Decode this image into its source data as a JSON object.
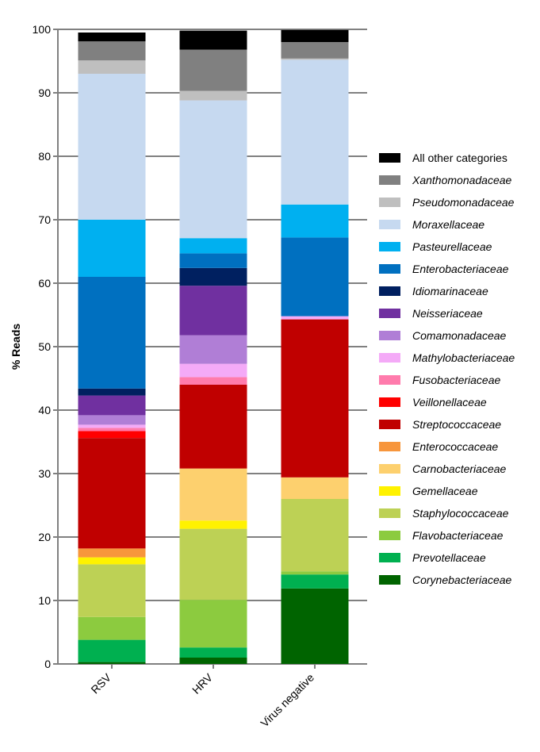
{
  "chart_data": {
    "type": "bar",
    "stacked": true,
    "categories": [
      "RSV",
      "HRV",
      "Virus negative"
    ],
    "ylabel": "% Reads",
    "xlabel": "",
    "ylim": [
      0,
      100
    ],
    "yticks": [
      0,
      10,
      20,
      30,
      40,
      50,
      60,
      70,
      80,
      90,
      100
    ],
    "grid": "horizontal",
    "legend_position": "right",
    "series": [
      {
        "name": "Corynebacteriaceae",
        "color": "#006400",
        "values": [
          0.3,
          1.0,
          11.9
        ]
      },
      {
        "name": "Prevotellaceae",
        "color": "#00B050",
        "values": [
          3.5,
          1.6,
          2.2
        ]
      },
      {
        "name": "Flavobacteriaceae",
        "color": "#8CCB3F",
        "values": [
          3.6,
          7.5,
          0.5
        ]
      },
      {
        "name": "Staphylococcaceae",
        "color": "#BDD155",
        "values": [
          8.3,
          11.2,
          11.4
        ]
      },
      {
        "name": "Gemellaceae",
        "color": "#FFF200",
        "values": [
          1.1,
          1.3,
          0.0
        ]
      },
      {
        "name": "Carnobacteriaceae",
        "color": "#FDD06E",
        "values": [
          0.0,
          8.2,
          3.4
        ]
      },
      {
        "name": "Enterococcaceae",
        "color": "#F7963C",
        "values": [
          1.4,
          0.0,
          0.0
        ]
      },
      {
        "name": "Streptococcaceae",
        "color": "#C00000",
        "values": [
          17.4,
          13.2,
          24.9
        ]
      },
      {
        "name": "Veillonellaceae",
        "color": "#FF0000",
        "values": [
          1.1,
          0.0,
          0.0
        ]
      },
      {
        "name": "Fusobacteriaceae",
        "color": "#FF7BAC",
        "values": [
          0.5,
          1.2,
          0.0
        ]
      },
      {
        "name": "Mathylobacteriaceae",
        "color": "#F4AAF7",
        "values": [
          0.5,
          2.1,
          0.5
        ]
      },
      {
        "name": "Comamonadaceae",
        "color": "#B07ED6",
        "values": [
          1.5,
          4.5,
          0.0
        ]
      },
      {
        "name": "Neisseriaceae",
        "color": "#7030A0",
        "values": [
          3.1,
          7.8,
          0.0
        ]
      },
      {
        "name": "Idiomarinaceae",
        "color": "#002060",
        "values": [
          1.1,
          2.8,
          0.0
        ]
      },
      {
        "name": "Enterobacteriaceae",
        "color": "#0070C0",
        "values": [
          17.6,
          2.3,
          12.4
        ]
      },
      {
        "name": "Pasteurellaceae",
        "color": "#00B0F0",
        "values": [
          9.0,
          2.4,
          5.2
        ]
      },
      {
        "name": "Moraxellaceae",
        "color": "#C6D9F0",
        "values": [
          23.0,
          21.7,
          22.8
        ]
      },
      {
        "name": "Pseudomonadaceae",
        "color": "#BFBFBF",
        "values": [
          2.1,
          1.5,
          0.2
        ]
      },
      {
        "name": "Xanthomonadaceae",
        "color": "#808080",
        "values": [
          3.0,
          6.5,
          2.6
        ]
      },
      {
        "name": "All other categories",
        "color": "#000000",
        "values": [
          1.4,
          3.0,
          1.9
        ]
      }
    ]
  }
}
